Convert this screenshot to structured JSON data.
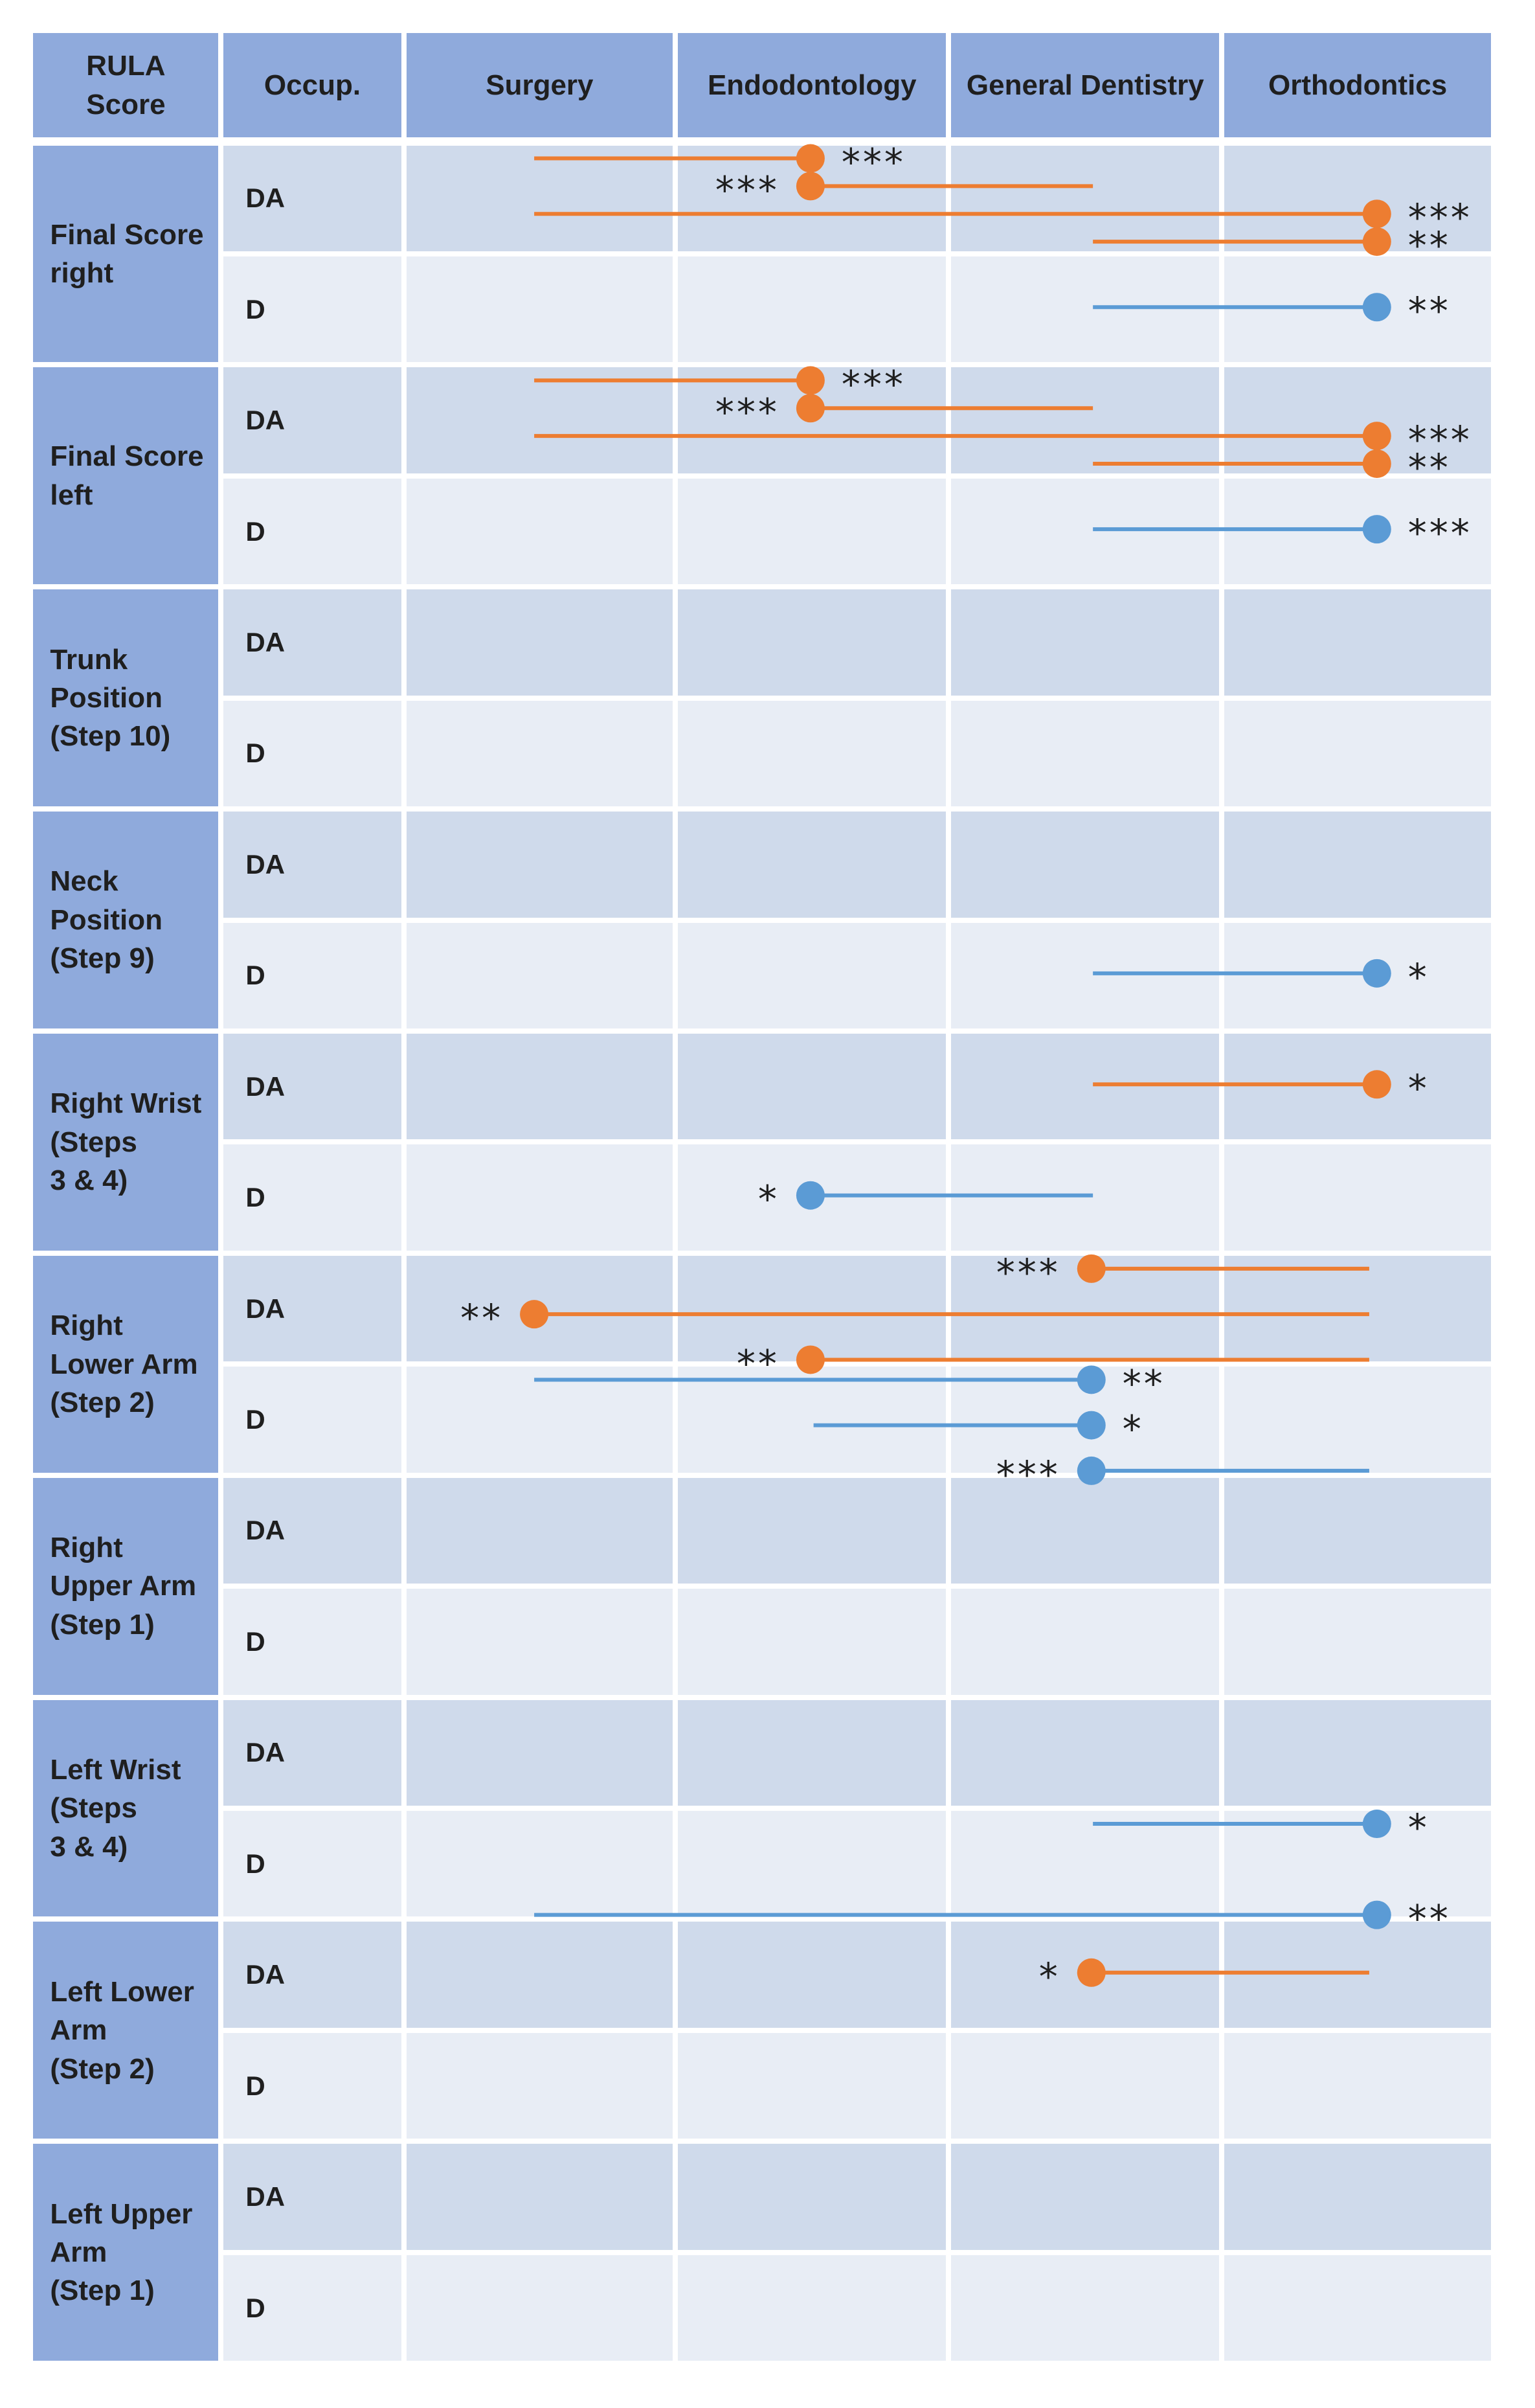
{
  "header": {
    "rula_score": "RULA\nScore",
    "occupation": "Occup.",
    "columns": [
      "Surgery",
      "Endodontology",
      "General Dentistry",
      "Orthodontics"
    ]
  },
  "groups": [
    {
      "label": "Final Score\nright",
      "rows": [
        "DA",
        "D"
      ]
    },
    {
      "label": "Final Score\nleft",
      "rows": [
        "DA",
        "D"
      ]
    },
    {
      "label": "Trunk\nPosition\n(Step 10)",
      "rows": [
        "DA",
        "D"
      ]
    },
    {
      "label": "Neck\nPosition\n(Step 9)",
      "rows": [
        "DA",
        "D"
      ]
    },
    {
      "label": "Right Wrist\n(Steps\n 3 & 4)",
      "rows": [
        "DA",
        "D"
      ]
    },
    {
      "label": "Right\nLower Arm\n(Step 2)",
      "rows": [
        "DA",
        "D"
      ]
    },
    {
      "label": "Right\nUpper Arm\n(Step 1)",
      "rows": [
        "DA",
        "D"
      ]
    },
    {
      "label": "Left Wrist\n(Steps\n 3 & 4)",
      "rows": [
        "DA",
        "D"
      ]
    },
    {
      "label": "Left Lower\nArm\n(Step 2)",
      "rows": [
        "DA",
        "D"
      ]
    },
    {
      "label": "Left Upper\nArm\n(Step 1)",
      "rows": [
        "DA",
        "D"
      ]
    }
  ],
  "colors": {
    "DA": "#ed7d31",
    "D": "#5b9bd5",
    "header": "#8faadc"
  },
  "comparisons": [
    {
      "group": 0,
      "occ": "DA",
      "from": 0,
      "to": 1,
      "dot": "to",
      "stars": "***",
      "star_side": "right",
      "slot": 0
    },
    {
      "group": 0,
      "occ": "DA",
      "from": 1,
      "to": 2,
      "dot": "from",
      "stars": "***",
      "star_side": "left",
      "slot": 1
    },
    {
      "group": 0,
      "occ": "DA",
      "from": 0,
      "to": 3,
      "dot": "to",
      "stars": "***",
      "star_side": "right",
      "slot": 2
    },
    {
      "group": 0,
      "occ": "DA",
      "from": 2,
      "to": 3,
      "dot": "to",
      "stars": "**",
      "star_side": "right",
      "slot": 3
    },
    {
      "group": 0,
      "occ": "D",
      "from": 2,
      "to": 3,
      "dot": "to",
      "stars": "**",
      "star_side": "right",
      "slot": 0
    },
    {
      "group": 1,
      "occ": "DA",
      "from": 0,
      "to": 1,
      "dot": "to",
      "stars": "***",
      "star_side": "right",
      "slot": 0
    },
    {
      "group": 1,
      "occ": "DA",
      "from": 1,
      "to": 2,
      "dot": "from",
      "stars": "***",
      "star_side": "left",
      "slot": 1
    },
    {
      "group": 1,
      "occ": "DA",
      "from": 0,
      "to": 3,
      "dot": "to",
      "stars": "***",
      "star_side": "right",
      "slot": 2
    },
    {
      "group": 1,
      "occ": "DA",
      "from": 2,
      "to": 3,
      "dot": "to",
      "stars": "**",
      "star_side": "right",
      "slot": 3
    },
    {
      "group": 1,
      "occ": "D",
      "from": 2,
      "to": 3,
      "dot": "to",
      "stars": "***",
      "star_side": "right",
      "slot": 0
    },
    {
      "group": 3,
      "occ": "D",
      "from": 2,
      "to": 3,
      "dot": "to",
      "stars": "*",
      "star_side": "right",
      "slot": 0
    },
    {
      "group": 4,
      "occ": "DA",
      "from": 2,
      "to": 3,
      "dot": "to",
      "stars": "*",
      "star_side": "right",
      "slot": 0
    },
    {
      "group": 4,
      "occ": "D",
      "from": 1,
      "to": 2,
      "dot": "from",
      "stars": "*",
      "star_side": "left",
      "slot": 0
    },
    {
      "group": 5,
      "occ": "DA",
      "from": 2,
      "to": 3,
      "dot": "from",
      "stars": "***",
      "star_side": "left",
      "slot": 0
    },
    {
      "group": 5,
      "occ": "DA",
      "from": 0,
      "to": 3,
      "dot": "from",
      "stars": "**",
      "star_side": "left",
      "slot": 1
    },
    {
      "group": 5,
      "occ": "DA",
      "from": 1,
      "to": 3,
      "dot": "from",
      "stars": "**",
      "star_side": "left",
      "slot": 2
    },
    {
      "group": 5,
      "occ": "D",
      "from": 0,
      "to": 2,
      "dot": "to",
      "stars": "**",
      "star_side": "right",
      "slot": 0
    },
    {
      "group": 5,
      "occ": "D",
      "from": 1,
      "to": 2,
      "dot": "to",
      "stars": "*",
      "star_side": "right",
      "slot": 1
    },
    {
      "group": 5,
      "occ": "D",
      "from": 2,
      "to": 3,
      "dot": "from",
      "stars": "***",
      "star_side": "left",
      "slot": 2
    },
    {
      "group": 7,
      "occ": "D",
      "from": 2,
      "to": 3,
      "dot": "to",
      "stars": "*",
      "star_side": "right",
      "slot": 0
    },
    {
      "group": 7,
      "occ": "D",
      "from": 0,
      "to": 3,
      "dot": "to",
      "stars": "**",
      "star_side": "right",
      "slot": 1
    },
    {
      "group": 8,
      "occ": "DA",
      "from": 2,
      "to": 3,
      "dot": "from",
      "stars": "*",
      "star_side": "left",
      "slot": 0
    }
  ]
}
